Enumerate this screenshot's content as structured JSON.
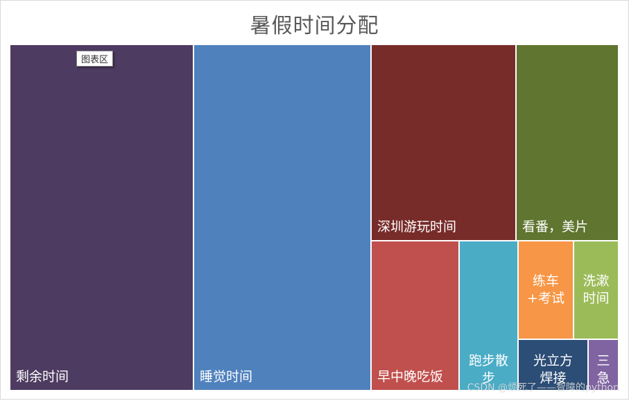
{
  "chart_data": {
    "type": "treemap",
    "title": "暑假时间分配",
    "items": [
      {
        "name": "剩余时间",
        "value": 26.0,
        "color": "#4e3b61"
      },
      {
        "name": "睡觉时间",
        "value": 25.2,
        "color": "#4f81bd"
      },
      {
        "name": "深圳游玩时间",
        "value": 11.8,
        "color": "#772c2a"
      },
      {
        "name": "看番，美片",
        "value": 8.3,
        "color": "#5f7530"
      },
      {
        "name": "早中晚吃饭",
        "value": 7.0,
        "color": "#c0504d"
      },
      {
        "name": "跑步散步",
        "value": 4.6,
        "color": "#4bacc6"
      },
      {
        "name": "练车+考试",
        "value": 2.8,
        "color": "#f79646"
      },
      {
        "name": "洗漱时间",
        "value": 2.8,
        "color": "#9bbb59"
      },
      {
        "name": "光立方焊接",
        "value": 1.8,
        "color": "#2c4d75"
      },
      {
        "name": "三急",
        "value": 0.8,
        "color": "#8064a2"
      }
    ]
  },
  "tooltip": {
    "text": "图表区"
  },
  "watermark": {
    "text": "CSDN @烦死了——智障的python"
  }
}
